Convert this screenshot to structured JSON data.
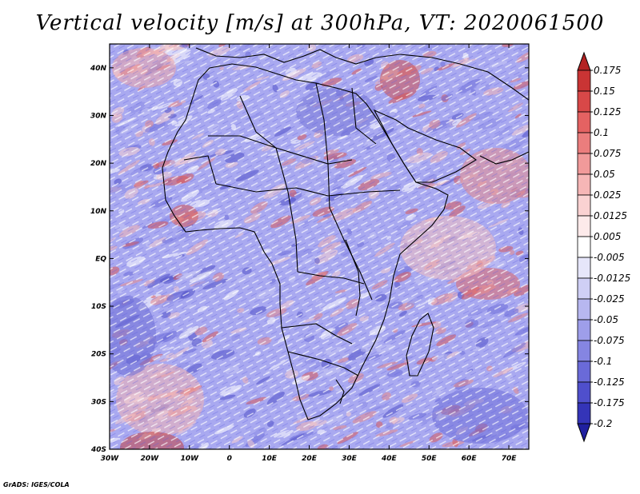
{
  "title": "Vertical velocity [m/s] at 300hPa, VT: 2020061500",
  "credit": "GrADS: IGES/COLA",
  "lat_labels": [
    "40N",
    "30N",
    "20N",
    "10N",
    "EQ",
    "10S",
    "20S",
    "30S",
    "40S"
  ],
  "lat_values": [
    40,
    30,
    20,
    10,
    0,
    -10,
    -20,
    -30,
    -40
  ],
  "lon_labels": [
    "30W",
    "20W",
    "10W",
    "0",
    "10E",
    "20E",
    "30E",
    "40E",
    "50E",
    "60E",
    "70E"
  ],
  "lon_values": [
    -30,
    -20,
    -10,
    0,
    10,
    20,
    30,
    40,
    50,
    60,
    70
  ],
  "extent": {
    "lon_min": -30,
    "lon_max": 75,
    "lat_min": -40,
    "lat_max": 45
  },
  "colorbar": {
    "levels": [
      "0.175",
      "0.15",
      "0.125",
      "0.1",
      "0.075",
      "0.05",
      "0.025",
      "0.0125",
      "0.005",
      "-0.005",
      "-0.0125",
      "-0.025",
      "-0.05",
      "-0.075",
      "-0.1",
      "-0.125",
      "-0.175",
      "-0.2"
    ],
    "colors": [
      "#b42323",
      "#c93434",
      "#d84848",
      "#e46262",
      "#eb7d7d",
      "#f19a9a",
      "#f6b6b6",
      "#fad2d2",
      "#fdeaea",
      "#ffffff",
      "#e6e6fa",
      "#cfcff5",
      "#b7b7f0",
      "#9e9eea",
      "#8585e2",
      "#6a6ad8",
      "#4f4fcc",
      "#3434b8",
      "#2020a0"
    ]
  }
}
